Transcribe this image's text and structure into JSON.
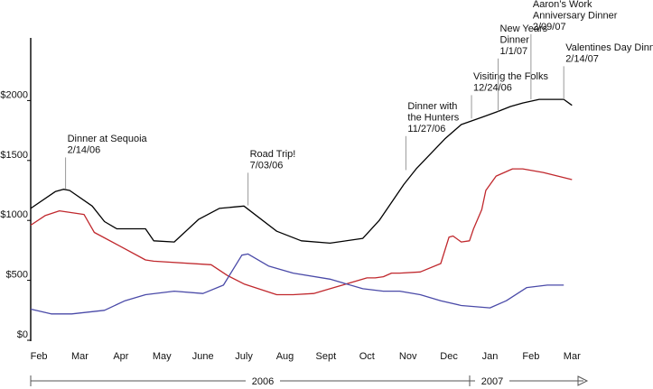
{
  "chart_data": {
    "type": "line",
    "title": "",
    "xlabel": "",
    "ylabel": "",
    "ylim": [
      0,
      2500
    ],
    "xlim": [
      0,
      13.3
    ],
    "y_ticks": [
      {
        "value": 0,
        "label": "$0"
      },
      {
        "value": 500,
        "label": "$500"
      },
      {
        "value": 1000,
        "label": "$1000"
      },
      {
        "value": 1500,
        "label": "$1500"
      },
      {
        "value": 2000,
        "label": "$2000"
      }
    ],
    "x_ticks": [
      {
        "value": 0.2,
        "label": "Feb"
      },
      {
        "value": 1.2,
        "label": "Mar"
      },
      {
        "value": 2.2,
        "label": "Apr"
      },
      {
        "value": 3.2,
        "label": "May"
      },
      {
        "value": 4.2,
        "label": "June"
      },
      {
        "value": 5.2,
        "label": "July"
      },
      {
        "value": 6.2,
        "label": "Aug"
      },
      {
        "value": 7.2,
        "label": "Sept"
      },
      {
        "value": 8.2,
        "label": "Oct"
      },
      {
        "value": 9.2,
        "label": "Nov"
      },
      {
        "value": 10.2,
        "label": "Dec"
      },
      {
        "value": 11.2,
        "label": "Jan"
      },
      {
        "value": 12.2,
        "label": "Feb"
      },
      {
        "value": 13.2,
        "label": "Mar"
      }
    ],
    "year_labels": [
      "2006",
      "2007"
    ],
    "grid": false,
    "legend": "none",
    "series": [
      {
        "color": "#000000",
        "points": [
          [
            0,
            1100
          ],
          [
            0.6,
            1240
          ],
          [
            0.8,
            1260
          ],
          [
            0.95,
            1250
          ],
          [
            1.5,
            1120
          ],
          [
            1.8,
            990
          ],
          [
            2.1,
            930
          ],
          [
            2.8,
            930
          ],
          [
            3.0,
            830
          ],
          [
            3.5,
            820
          ],
          [
            4.1,
            1010
          ],
          [
            4.6,
            1100
          ],
          [
            5.2,
            1120
          ],
          [
            6.0,
            910
          ],
          [
            6.6,
            830
          ],
          [
            7.3,
            810
          ],
          [
            8.1,
            850
          ],
          [
            8.5,
            1000
          ],
          [
            9.1,
            1300
          ],
          [
            9.4,
            1430
          ],
          [
            10.1,
            1680
          ],
          [
            10.5,
            1800
          ],
          [
            11.0,
            1860
          ],
          [
            11.4,
            1910
          ],
          [
            11.7,
            1950
          ],
          [
            12.0,
            1980
          ],
          [
            12.4,
            2010
          ],
          [
            12.7,
            2010
          ],
          [
            13.0,
            2010
          ],
          [
            13.2,
            1960
          ]
        ]
      },
      {
        "color": "#c0282d",
        "points": [
          [
            0,
            960
          ],
          [
            0.35,
            1040
          ],
          [
            0.7,
            1080
          ],
          [
            1.3,
            1050
          ],
          [
            1.55,
            900
          ],
          [
            2.15,
            790
          ],
          [
            2.8,
            670
          ],
          [
            3.0,
            660
          ],
          [
            4.4,
            630
          ],
          [
            4.8,
            540
          ],
          [
            5.2,
            470
          ],
          [
            6.0,
            380
          ],
          [
            6.4,
            380
          ],
          [
            6.9,
            390
          ],
          [
            7.3,
            430
          ],
          [
            8.2,
            520
          ],
          [
            8.4,
            520
          ],
          [
            8.6,
            530
          ],
          [
            8.8,
            560
          ],
          [
            9.0,
            560
          ],
          [
            9.5,
            570
          ],
          [
            10.0,
            640
          ],
          [
            10.2,
            860
          ],
          [
            10.3,
            870
          ],
          [
            10.5,
            820
          ],
          [
            10.7,
            830
          ],
          [
            10.8,
            930
          ],
          [
            11.0,
            1090
          ],
          [
            11.1,
            1250
          ],
          [
            11.35,
            1370
          ],
          [
            11.75,
            1430
          ],
          [
            12.0,
            1430
          ],
          [
            12.5,
            1400
          ],
          [
            13.2,
            1340
          ]
        ]
      },
      {
        "color": "#4a4aa8",
        "points": [
          [
            0,
            260
          ],
          [
            0.5,
            220
          ],
          [
            1.0,
            220
          ],
          [
            1.8,
            250
          ],
          [
            2.3,
            330
          ],
          [
            2.8,
            380
          ],
          [
            3.5,
            410
          ],
          [
            4.2,
            390
          ],
          [
            4.7,
            460
          ],
          [
            5.15,
            710
          ],
          [
            5.3,
            720
          ],
          [
            5.8,
            620
          ],
          [
            6.4,
            560
          ],
          [
            7.3,
            510
          ],
          [
            7.6,
            480
          ],
          [
            8.1,
            430
          ],
          [
            8.6,
            410
          ],
          [
            9.0,
            410
          ],
          [
            9.5,
            380
          ],
          [
            10.0,
            330
          ],
          [
            10.5,
            290
          ],
          [
            11.2,
            270
          ],
          [
            11.6,
            330
          ],
          [
            12.1,
            440
          ],
          [
            12.6,
            460
          ],
          [
            13.0,
            460
          ]
        ]
      }
    ],
    "annotations": [
      {
        "text": [
          "Dinner at Sequoia",
          "2/14/06"
        ],
        "x": 0.85,
        "y": 1265
      },
      {
        "text": [
          "Road Trip!",
          "7/03/06"
        ],
        "x": 5.3,
        "y": 1125
      },
      {
        "text": [
          "Dinner with",
          "the Hunters",
          "11/27/06"
        ],
        "x": 9.15,
        "y": 1420
      },
      {
        "text": [
          "Visiting the Folks",
          "12/24/06"
        ],
        "x": 10.75,
        "y": 1850
      },
      {
        "text": [
          "New Years",
          "Dinner",
          "1/1/07"
        ],
        "x": 11.4,
        "y": 1910
      },
      {
        "text": [
          "Aaron’s Work",
          "Anniversary Dinner",
          "2/09/07"
        ],
        "x": 12.2,
        "y": 2010
      },
      {
        "text": [
          "Valentines Day Dinner",
          "2/14/07"
        ],
        "x": 13.0,
        "y": 2010
      }
    ]
  }
}
